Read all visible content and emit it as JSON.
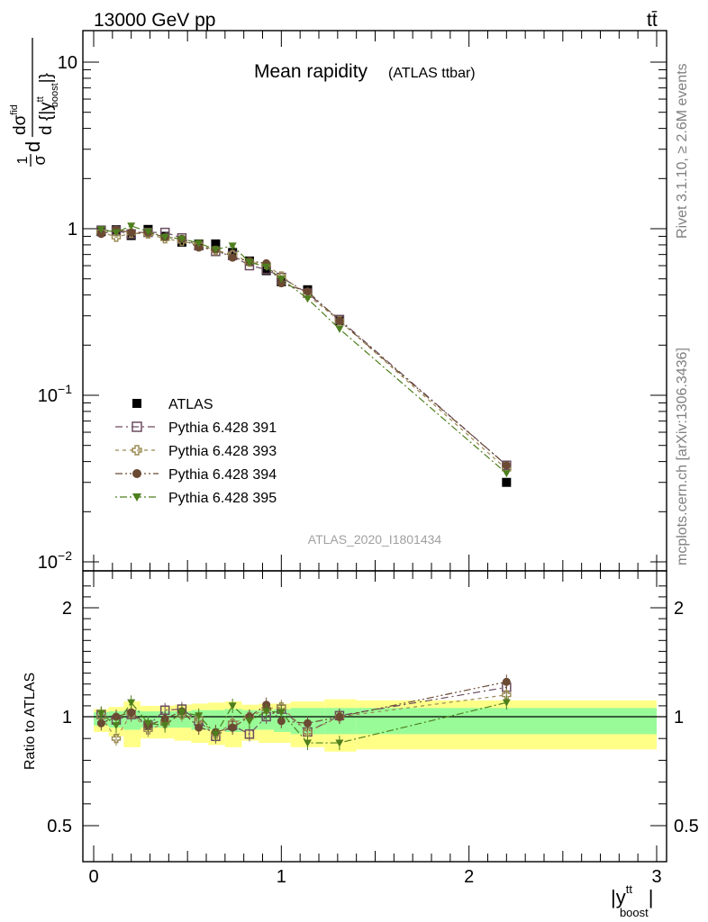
{
  "header": {
    "energy_label": "13000 GeV pp",
    "process_label": "tt̄"
  },
  "side_labels": {
    "rivet": "Rivet 3.1.10, ≥ 2.6M events",
    "mcplots": "mcplots.cern.ch [arXiv:1306.3436]"
  },
  "watermark": "ATLAS_2020_I1801434",
  "colors": {
    "data": "#000000",
    "p391": "#6b4c5f",
    "p393": "#9a8a52",
    "p394": "#6b4a33",
    "p395": "#4e7f1e",
    "band_inner": "#98fb98",
    "band_outer": "#ffff88"
  },
  "chart_data": [
    {
      "type": "scatter",
      "title": "Mean rapidity",
      "subtitle": "(ATLAS ttbar)",
      "ylabel_parts": {
        "frac1_num": "1",
        "frac1_den": "σ",
        "d": "d",
        "frac2_num": "dσ",
        "frac2_num_sup": "fid",
        "frac2_den": "d {|y",
        "frac2_den_sup": "tt",
        "frac2_den_sub": "boost",
        "frac2_den_close": "|}"
      },
      "yscale": "log",
      "ylim": [
        0.0085,
        16
      ],
      "xlim": [
        -0.05,
        3.05
      ],
      "yticks": [
        {
          "value": 10,
          "label": "10"
        },
        {
          "value": 1,
          "label": "1"
        },
        {
          "value": 0.1,
          "label": "10",
          "sup": "−1"
        },
        {
          "value": 0.01,
          "label": "10",
          "sup": "−2"
        }
      ],
      "x": [
        0.04,
        0.12,
        0.2,
        0.29,
        0.38,
        0.47,
        0.56,
        0.65,
        0.74,
        0.83,
        0.92,
        1.0,
        1.14,
        1.31,
        2.2
      ],
      "series": [
        {
          "name": "ATLAS",
          "marker": "square-filled",
          "color_key": "data",
          "values": [
            0.96,
            0.985,
            0.91,
            0.99,
            0.9,
            0.83,
            0.81,
            0.81,
            0.72,
            0.64,
            0.56,
            0.48,
            0.43,
            0.28,
            0.03
          ]
        },
        {
          "name": "Pythia 6.428 391",
          "marker": "square-open",
          "color_key": "p391",
          "values": [
            0.98,
            0.97,
            0.93,
            0.95,
            0.95,
            0.88,
            0.79,
            0.73,
            0.69,
            0.6,
            0.57,
            0.51,
            0.41,
            0.285,
            0.038
          ]
        },
        {
          "name": "Pythia 6.428 393",
          "marker": "cross-open",
          "color_key": "p393",
          "values": [
            0.96,
            0.89,
            0.94,
            0.93,
            0.87,
            0.84,
            0.8,
            0.74,
            0.7,
            0.63,
            0.61,
            0.52,
            0.4,
            0.28,
            0.036
          ]
        },
        {
          "name": "Pythia 6.428 394",
          "marker": "circle-filled",
          "color_key": "p394",
          "values": [
            0.93,
            0.985,
            0.95,
            0.95,
            0.89,
            0.87,
            0.77,
            0.75,
            0.67,
            0.64,
            0.62,
            0.47,
            0.42,
            0.28,
            0.038
          ]
        },
        {
          "name": "Pythia 6.428 395",
          "marker": "triangle-down-filled",
          "color_key": "p395",
          "values": [
            0.99,
            0.95,
            1.04,
            0.96,
            0.89,
            0.87,
            0.82,
            0.75,
            0.79,
            0.63,
            0.59,
            0.5,
            0.38,
            0.25,
            0.034
          ]
        }
      ],
      "legend_position": "lower-left"
    },
    {
      "type": "scatter",
      "ylabel": "Ratio to ATLAS",
      "xlabel_parts": {
        "main": "|y",
        "sup": "tt",
        "sub": "boost",
        "close": "|"
      },
      "ylim": [
        0.4,
        2.3
      ],
      "xlim": [
        -0.05,
        3.05
      ],
      "xticks": [
        0,
        1,
        2,
        3
      ],
      "yticks": [
        0.5,
        1,
        2
      ],
      "reference_line": 1,
      "band_edges": [
        0.0,
        0.08,
        0.16,
        0.25,
        0.34,
        0.43,
        0.52,
        0.61,
        0.7,
        0.79,
        0.88,
        0.96,
        1.05,
        1.23,
        1.4,
        3.0
      ],
      "band_inner": [
        [
          0.96,
          1.04
        ],
        [
          0.95,
          1.05
        ],
        [
          0.94,
          1.06
        ],
        [
          0.95,
          1.05
        ],
        [
          0.95,
          1.05
        ],
        [
          0.95,
          1.05
        ],
        [
          0.94,
          1.06
        ],
        [
          0.94,
          1.06
        ],
        [
          0.93,
          1.07
        ],
        [
          0.94,
          1.06
        ],
        [
          0.94,
          1.06
        ],
        [
          0.93,
          1.07
        ],
        [
          0.92,
          1.08
        ],
        [
          0.92,
          1.08
        ],
        [
          0.92,
          1.08
        ]
      ],
      "band_outer": [
        [
          0.93,
          1.07
        ],
        [
          0.91,
          1.09
        ],
        [
          0.86,
          1.14
        ],
        [
          0.9,
          1.1
        ],
        [
          0.9,
          1.1
        ],
        [
          0.89,
          1.11
        ],
        [
          0.88,
          1.12
        ],
        [
          0.87,
          1.13
        ],
        [
          0.86,
          1.14
        ],
        [
          0.89,
          1.11
        ],
        [
          0.88,
          1.12
        ],
        [
          0.88,
          1.12
        ],
        [
          0.86,
          1.14
        ],
        [
          0.84,
          1.16
        ],
        [
          0.85,
          1.15
        ]
      ],
      "x": [
        0.04,
        0.12,
        0.2,
        0.29,
        0.38,
        0.47,
        0.56,
        0.65,
        0.74,
        0.83,
        0.92,
        1.0,
        1.14,
        1.31,
        2.2
      ],
      "series": [
        {
          "name": "Pythia 6.428 391",
          "color_key": "p391",
          "marker": "square-open",
          "values": [
            1.02,
            0.985,
            1.02,
            0.96,
            1.06,
            1.07,
            0.98,
            0.91,
            0.96,
            0.92,
            1.0,
            1.07,
            0.93,
            1.01,
            1.27
          ]
        },
        {
          "name": "Pythia 6.428 393",
          "color_key": "p393",
          "marker": "cross-open",
          "values": [
            1.0,
            0.9,
            1.03,
            0.94,
            0.97,
            1.02,
            0.99,
            0.92,
            0.97,
            1.0,
            1.07,
            1.09,
            0.93,
            1.0,
            1.2
          ]
        },
        {
          "name": "Pythia 6.428 394",
          "color_key": "p394",
          "marker": "circle-filled",
          "values": [
            0.97,
            1.0,
            1.04,
            0.96,
            0.99,
            1.05,
            0.95,
            0.93,
            0.95,
            1.0,
            1.11,
            0.98,
            0.97,
            1.0,
            1.32
          ]
        },
        {
          "name": "Pythia 6.428 395",
          "color_key": "p395",
          "marker": "triangle-down-filled",
          "values": [
            1.03,
            0.96,
            1.13,
            0.97,
            0.96,
            1.04,
            1.01,
            0.92,
            1.1,
            0.98,
            1.05,
            1.04,
            0.88,
            0.88,
            1.13
          ]
        }
      ]
    }
  ]
}
